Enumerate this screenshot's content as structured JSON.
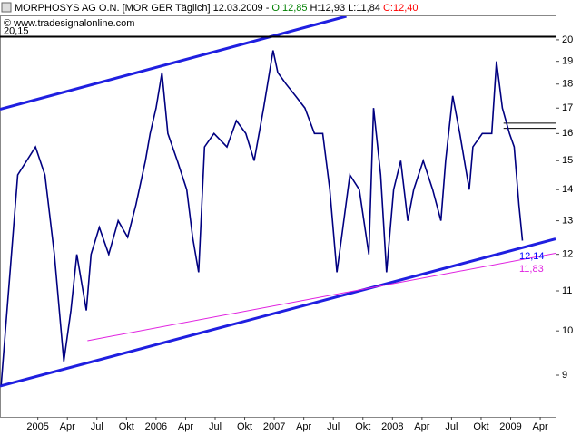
{
  "chart_data": {
    "type": "line",
    "title": "MORPHOSYS AG O.N. [MOR GER  Täglich] 12.03.2009 -",
    "quote": [
      {
        "text": "O:12,85",
        "color": "#008000"
      },
      {
        "text": "H:12,93",
        "color": "#000000"
      },
      {
        "text": "L:11,84",
        "color": "#000000"
      },
      {
        "text": "C:12,40",
        "color": "#ff0000"
      }
    ],
    "copyright": "© www.tradesignalonline.com",
    "yscale": "log",
    "xlim": [
      2004.68,
      2009.38
    ],
    "ylim": [
      8.15,
      21.15
    ],
    "yticks": [
      9,
      10,
      11,
      12,
      13,
      14,
      15,
      16,
      17,
      18,
      19,
      20
    ],
    "xticks": [
      {
        "value": 2005,
        "label": "2005"
      },
      {
        "value": 2005.25,
        "label": "Apr"
      },
      {
        "value": 2005.5,
        "label": "Jul"
      },
      {
        "value": 2005.75,
        "label": "Okt"
      },
      {
        "value": 2006,
        "label": "2006"
      },
      {
        "value": 2006.25,
        "label": "Apr"
      },
      {
        "value": 2006.5,
        "label": "Jul"
      },
      {
        "value": 2006.75,
        "label": "Okt"
      },
      {
        "value": 2007,
        "label": "2007"
      },
      {
        "value": 2007.25,
        "label": "Apr"
      },
      {
        "value": 2007.5,
        "label": "Jul"
      },
      {
        "value": 2007.75,
        "label": "Okt"
      },
      {
        "value": 2008,
        "label": "2008"
      },
      {
        "value": 2008.25,
        "label": "Apr"
      },
      {
        "value": 2008.5,
        "label": "Jul"
      },
      {
        "value": 2008.75,
        "label": "Okt"
      },
      {
        "value": 2009,
        "label": "2009"
      },
      {
        "value": 2009.25,
        "label": "Apr"
      }
    ],
    "series": [
      {
        "name": "MORPHOSYS AG O.N.",
        "color": "#000080",
        "x": [
          2004.69,
          2004.83,
          2004.98,
          2005.06,
          2005.14,
          2005.22,
          2005.28,
          2005.33,
          2005.41,
          2005.45,
          2005.52,
          2005.6,
          2005.68,
          2005.76,
          2005.83,
          2005.91,
          2005.95,
          2006.0,
          2006.05,
          2006.1,
          2006.18,
          2006.26,
          2006.31,
          2006.36,
          2006.41,
          2006.49,
          2006.6,
          2006.68,
          2006.76,
          2006.83,
          2006.91,
          2006.99,
          2007.03,
          2007.1,
          2007.18,
          2007.26,
          2007.34,
          2007.41,
          2007.47,
          2007.53,
          2007.57,
          2007.64,
          2007.72,
          2007.8,
          2007.84,
          2007.9,
          2007.95,
          2008.01,
          2008.07,
          2008.13,
          2008.18,
          2008.26,
          2008.34,
          2008.41,
          2008.45,
          2008.51,
          2008.57,
          2008.65,
          2008.68,
          2008.76,
          2008.84,
          2008.88,
          2008.93,
          2008.99,
          2009.03,
          2009.07,
          2009.1
        ],
        "values": [
          8.8,
          14.5,
          15.5,
          14.5,
          12,
          9.3,
          10.5,
          12,
          10.5,
          12,
          12.8,
          12,
          13,
          12.5,
          13.5,
          15,
          16,
          17,
          18.5,
          16,
          15,
          14,
          12.5,
          11.5,
          15.5,
          16,
          15.5,
          16.5,
          16,
          15,
          17,
          19.5,
          18.5,
          18,
          17.5,
          17,
          16,
          16,
          14,
          11.5,
          12.5,
          14.5,
          14,
          12,
          17,
          14.5,
          11.5,
          14,
          15,
          13,
          14,
          15,
          14,
          13,
          15,
          17.5,
          16,
          14,
          15.5,
          16,
          16,
          19,
          17,
          16,
          15.5,
          13.5,
          12.4
        ]
      }
    ],
    "lines": [
      {
        "color": "#1f1fe0",
        "width": 3,
        "points": [
          [
            2004.68,
            16.95
          ],
          [
            2007.61,
            21.15
          ]
        ]
      },
      {
        "color": "#1f1fe0",
        "width": 3,
        "points": [
          [
            2004.68,
            8.77
          ],
          [
            2009.38,
            12.45
          ]
        ]
      },
      {
        "color": "#e020e0",
        "width": 1,
        "points": [
          [
            2005.42,
            9.77
          ],
          [
            2009.38,
            12.03
          ]
        ]
      },
      {
        "color": "#000000",
        "width": 2,
        "points": [
          [
            2004.68,
            20.15
          ],
          [
            2009.38,
            20.15
          ]
        ]
      },
      {
        "color": "#000000",
        "width": 1,
        "points": [
          [
            2008.94,
            16.4
          ],
          [
            2009.38,
            16.4
          ]
        ]
      },
      {
        "color": "#000000",
        "width": 1,
        "points": [
          [
            2008.94,
            16.2
          ],
          [
            2009.38,
            16.2
          ]
        ]
      }
    ],
    "annotations": [
      {
        "value": 20.15,
        "label": "20,15",
        "color": "#000000",
        "side": "left"
      },
      {
        "value": 12.14,
        "label": "12,14",
        "color": "#0000ff",
        "side": "right"
      },
      {
        "value": 11.83,
        "label": "11,83",
        "color": "#e020e0",
        "side": "right"
      }
    ]
  }
}
